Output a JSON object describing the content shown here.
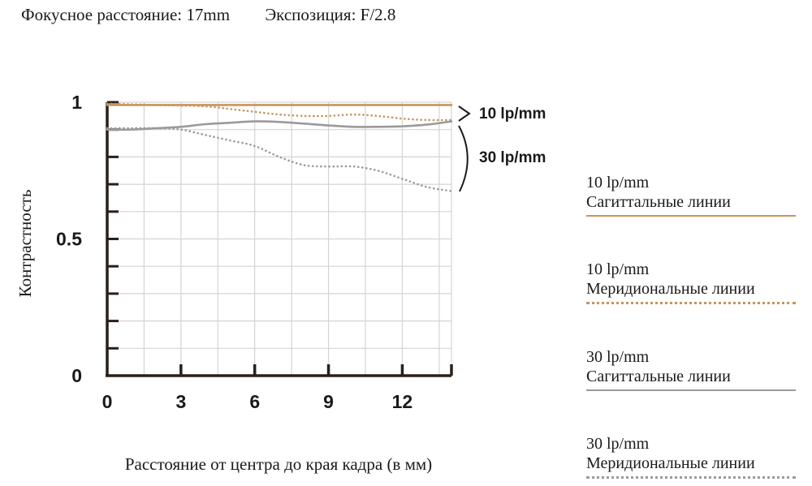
{
  "header": {
    "focal": "Фокусное расстояние: 17mm",
    "exposure": "Экспозиция: F/2.8"
  },
  "colors": {
    "sagittal_10": "#c8955a",
    "meridional_10": "#c8955a",
    "sagittal_30": "#9a9a9a",
    "meridional_30": "#9a9a9a",
    "axis": "#2b1f1a",
    "grid": "#d4d4d4"
  },
  "annotations": {
    "lp10": "10 lp/mm",
    "lp30": "30 lp/mm"
  },
  "legend": [
    {
      "line1": "10 lp/mm",
      "line2": "Сагиттальные линии",
      "style": "solid",
      "color": "#c8955a"
    },
    {
      "line1": "10 lp/mm",
      "line2": "Меридиональные линии",
      "style": "dotted",
      "color": "#c8955a"
    },
    {
      "line1": "30 lp/mm",
      "line2": "Сагиттальные линии",
      "style": "solid",
      "color": "#9a9a9a"
    },
    {
      "line1": "30 lp/mm",
      "line2": "Меридиональные линии",
      "style": "dotted",
      "color": "#9a9a9a"
    }
  ],
  "chart_data": {
    "type": "line",
    "xlabel": "Расстояние от центра до края кадра (в мм)",
    "ylabel": "Контрастность",
    "xlim": [
      0,
      14
    ],
    "ylim": [
      0,
      1
    ],
    "xticks": [
      "0",
      "3",
      "6",
      "9",
      "12"
    ],
    "xtick_values": [
      0,
      3,
      6,
      9,
      12
    ],
    "yticks": [
      "0",
      "0.5",
      "1"
    ],
    "ytick_values": [
      0,
      0.5,
      1
    ],
    "grid": true,
    "series": [
      {
        "name": "10 lp/mm Сагиттальные линии",
        "style": "solid",
        "color": "#c8955a",
        "x": [
          0,
          2,
          4,
          6,
          8,
          10,
          12,
          14
        ],
        "y": [
          0.99,
          0.99,
          0.99,
          0.99,
          0.99,
          0.99,
          0.99,
          0.99
        ]
      },
      {
        "name": "10 lp/mm Меридиональные линии",
        "style": "dotted",
        "color": "#c8955a",
        "x": [
          0,
          2,
          4,
          5,
          6,
          7,
          8,
          9,
          10,
          11,
          12,
          13,
          14
        ],
        "y": [
          0.995,
          0.99,
          0.985,
          0.975,
          0.965,
          0.955,
          0.95,
          0.95,
          0.955,
          0.95,
          0.94,
          0.935,
          0.935
        ]
      },
      {
        "name": "30 lp/mm Сагиттальные линии",
        "style": "solid",
        "color": "#9a9a9a",
        "x": [
          0,
          1,
          2,
          3,
          4,
          5,
          6,
          7,
          8,
          9,
          10,
          11,
          12,
          13,
          14
        ],
        "y": [
          0.9,
          0.9,
          0.905,
          0.91,
          0.92,
          0.925,
          0.93,
          0.928,
          0.922,
          0.915,
          0.91,
          0.91,
          0.912,
          0.918,
          0.93
        ]
      },
      {
        "name": "30 lp/mm Меридиональные линии",
        "style": "dotted",
        "color": "#9a9a9a",
        "x": [
          0,
          1,
          2,
          3,
          4,
          5,
          6,
          7,
          8,
          9,
          10,
          11,
          12,
          13,
          14
        ],
        "y": [
          0.905,
          0.905,
          0.905,
          0.9,
          0.88,
          0.86,
          0.84,
          0.8,
          0.77,
          0.765,
          0.765,
          0.75,
          0.72,
          0.69,
          0.675
        ]
      }
    ]
  }
}
